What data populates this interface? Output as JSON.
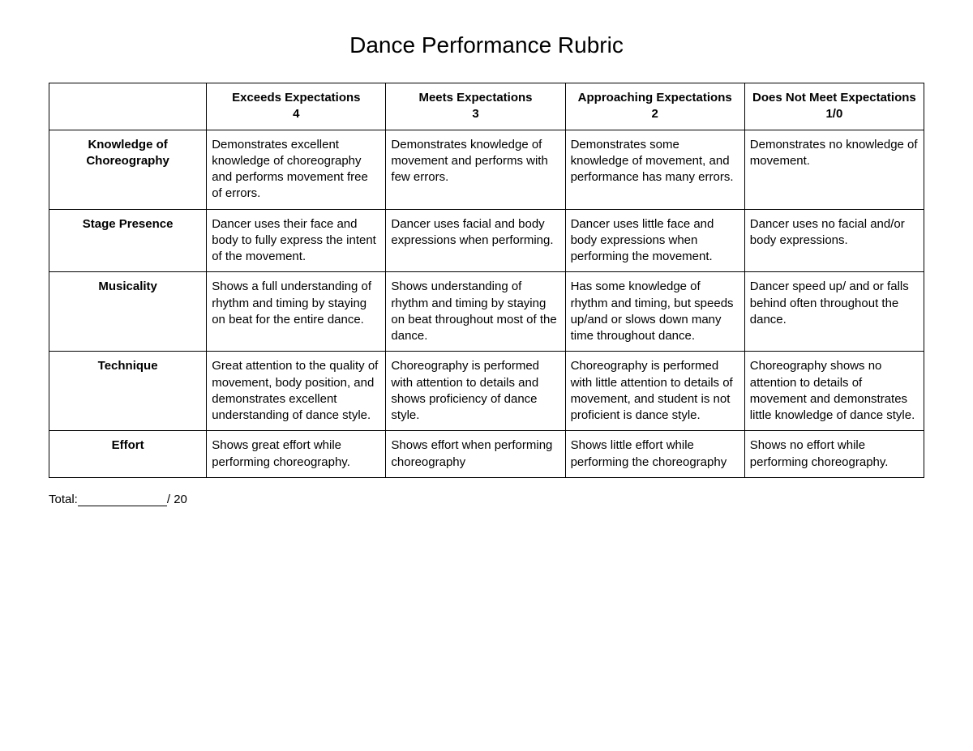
{
  "title": "Dance Performance Rubric",
  "columns": [
    {
      "label": "Exceeds Expectations",
      "score": "4"
    },
    {
      "label": "Meets Expectations",
      "score": "3"
    },
    {
      "label": "Approaching Expectations",
      "score": "2"
    },
    {
      "label": "Does Not Meet Expectations",
      "score": "1/0"
    }
  ],
  "rows": [
    {
      "criteria": "Knowledge of Choreography",
      "cells": [
        "Demonstrates excellent knowledge of choreography and performs movement free of errors.",
        "Demonstrates knowledge of movement and performs with few errors.",
        "Demonstrates some knowledge of movement, and performance has many errors.",
        "Demonstrates no knowledge of movement."
      ]
    },
    {
      "criteria": "Stage Presence",
      "cells": [
        "Dancer uses their face and body to fully express the intent of the movement.",
        "Dancer uses facial and body expressions when performing.",
        "Dancer uses little face and body expressions when performing the movement.",
        "Dancer uses no facial and/or body expressions."
      ]
    },
    {
      "criteria": "Musicality",
      "cells": [
        "Shows a full understanding of rhythm and timing by staying on beat for the entire dance.",
        "Shows understanding of rhythm and timing by staying on beat throughout most of the dance.",
        "Has some knowledge of rhythm and timing, but speeds up/and or slows down many time throughout dance.",
        "Dancer speed up/ and or falls behind often throughout the dance."
      ]
    },
    {
      "criteria": "Technique",
      "cells": [
        "Great attention to the quality of movement, body position, and demonstrates excellent understanding of dance style.",
        "Choreography is performed with attention to details and shows proficiency of dance style.",
        "Choreography is performed with little attention to details of movement, and student is not proficient is dance style.",
        "Choreography shows no attention to details of movement and demonstrates little knowledge of dance style."
      ]
    },
    {
      "criteria": "Effort",
      "cells": [
        "Shows great effort while performing choreography.",
        "Shows effort when performing choreography",
        "Shows little effort while performing the choreography",
        "Shows no effort while performing choreography."
      ]
    }
  ],
  "total": {
    "label": "Total:",
    "max": "/ 20"
  },
  "style": {
    "title_fontsize": 28,
    "cell_fontsize": 15,
    "border_color": "#000000",
    "background_color": "#ffffff",
    "text_color": "#000000",
    "font_family": "Arial"
  }
}
